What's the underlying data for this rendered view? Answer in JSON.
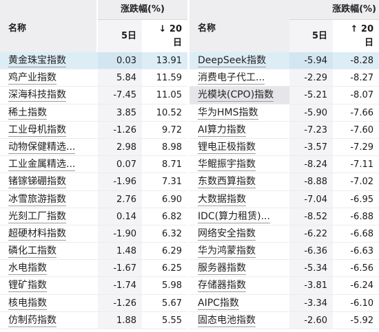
{
  "header": {
    "group_label": "涨跌幅(%)",
    "name_label": "名称",
    "col5_label": "5日",
    "left_sort_arrow": "↓",
    "right_sort_arrow": "↑",
    "col20_label": "20",
    "col20_unit": "日"
  },
  "left_rows": [
    {
      "name": "黄金珠宝指数",
      "d5": "0.03",
      "d20": "13.91"
    },
    {
      "name": "鸡产业指数",
      "d5": "5.84",
      "d20": "11.59"
    },
    {
      "name": "深海科技指数",
      "d5": "-7.45",
      "d20": "11.05"
    },
    {
      "name": "稀土指数",
      "d5": "3.85",
      "d20": "10.52"
    },
    {
      "name": "工业母机指数",
      "d5": "-1.26",
      "d20": "9.72"
    },
    {
      "name": "动物保健精选...",
      "d5": "2.98",
      "d20": "8.98"
    },
    {
      "name": "工业金属精选...",
      "d5": "0.07",
      "d20": "8.71"
    },
    {
      "name": "锗镓锑硼指数",
      "d5": "-1.96",
      "d20": "7.31"
    },
    {
      "name": "冰雪旅游指数",
      "d5": "2.76",
      "d20": "6.90"
    },
    {
      "name": "光刻工厂指数",
      "d5": "0.14",
      "d20": "6.82"
    },
    {
      "name": "超硬材料指数",
      "d5": "-1.90",
      "d20": "6.32"
    },
    {
      "name": "磷化工指数",
      "d5": "1.48",
      "d20": "6.29"
    },
    {
      "name": "水电指数",
      "d5": "-1.67",
      "d20": "6.25"
    },
    {
      "name": "锂矿指数",
      "d5": "-1.74",
      "d20": "5.98"
    },
    {
      "name": "核电指数",
      "d5": "-1.26",
      "d20": "5.67"
    },
    {
      "name": "仿制药指数",
      "d5": "1.88",
      "d20": "5.55"
    }
  ],
  "right_rows": [
    {
      "name": "DeepSeek指数",
      "d5": "-5.94",
      "d20": "-8.28"
    },
    {
      "name": "消费电子代工...",
      "d5": "-2.29",
      "d20": "-8.27"
    },
    {
      "name": "光模块(CPO)指数",
      "d5": "-5.21",
      "d20": "-8.07"
    },
    {
      "name": "华为HMS指数",
      "d5": "-5.90",
      "d20": "-7.66"
    },
    {
      "name": "AI算力指数",
      "d5": "-7.23",
      "d20": "-7.60"
    },
    {
      "name": "锂电正极指数",
      "d5": "-3.57",
      "d20": "-7.29"
    },
    {
      "name": "华鲲振宇指数",
      "d5": "-8.24",
      "d20": "-7.11"
    },
    {
      "name": "东数西算指数",
      "d5": "-8.88",
      "d20": "-7.02"
    },
    {
      "name": "大数据指数",
      "d5": "-7.04",
      "d20": "-6.95"
    },
    {
      "name": "IDC(算力租赁)...",
      "d5": "-8.52",
      "d20": "-6.88"
    },
    {
      "name": "网络安全指数",
      "d5": "-6.22",
      "d20": "-6.68"
    },
    {
      "name": "华为鸿蒙指数",
      "d5": "-6.36",
      "d20": "-6.63"
    },
    {
      "name": "服务器指数",
      "d5": "-5.34",
      "d20": "-6.56"
    },
    {
      "name": "存储器指数",
      "d5": "-3.81",
      "d20": "-6.24"
    },
    {
      "name": "AIPC指数",
      "d5": "-3.34",
      "d20": "-6.10"
    },
    {
      "name": "固态电池指数",
      "d5": "-2.60",
      "d20": "-5.92"
    }
  ],
  "colors": {
    "header_bg": "#eeeef1",
    "col5_bg": "#f4f4f7",
    "highlight_blue": "#dcedf6",
    "highlight_grey": "#e6e6ea"
  }
}
